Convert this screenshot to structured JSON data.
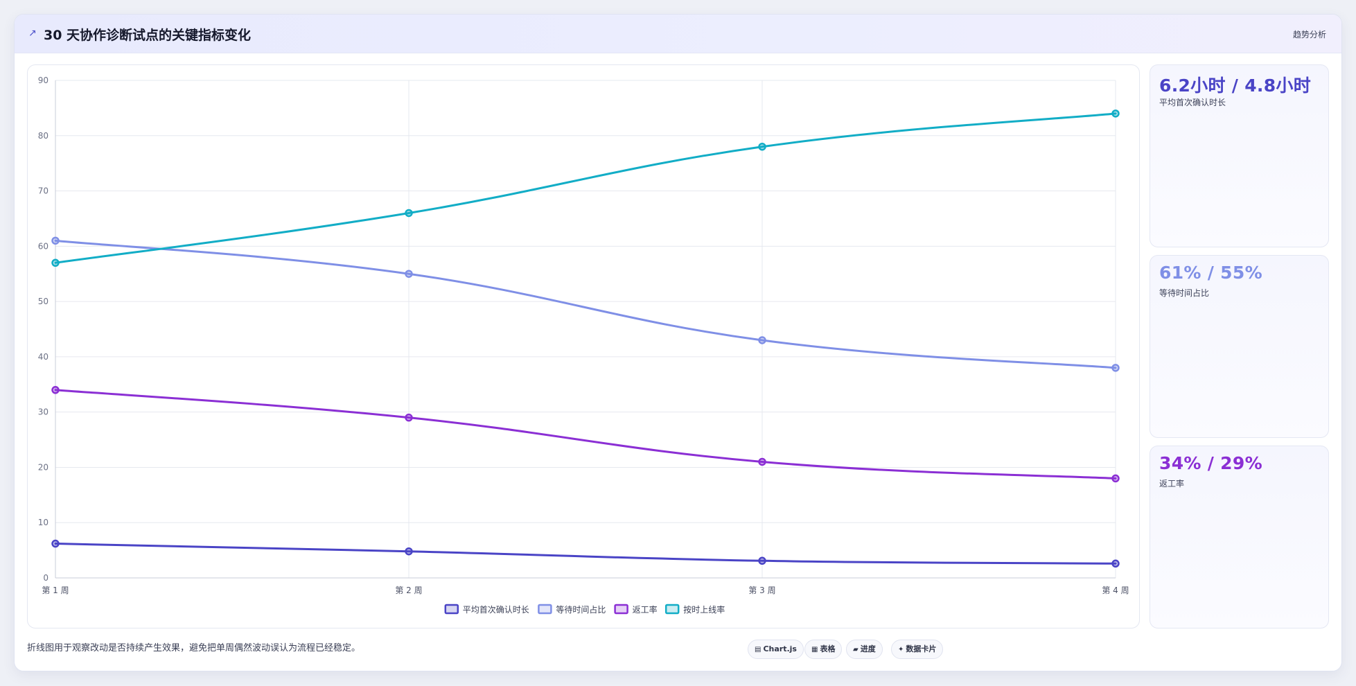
{
  "header": {
    "icon": "trend-icon",
    "icon_glyph": "↗",
    "title": "30 天协作诊断试点的关键指标变化",
    "tag": "趋势分析"
  },
  "chart_data": {
    "type": "line",
    "categories": [
      "第 1 周",
      "第 2 周",
      "第 3 周",
      "第 4 周"
    ],
    "ylim": [
      0,
      90
    ],
    "yticks": [
      0,
      10,
      20,
      30,
      40,
      50,
      60,
      70,
      80,
      90
    ],
    "grid": true,
    "legend_position": "bottom",
    "series": [
      {
        "name": "平均首次确认时长",
        "color": "#4a44c6",
        "values": [
          6.2,
          4.8,
          3.1,
          2.6
        ]
      },
      {
        "name": "等待时间占比",
        "color": "#7f8fe6",
        "values": [
          61,
          55,
          43,
          38
        ]
      },
      {
        "name": "返工率",
        "color": "#8b2fd4",
        "values": [
          34,
          29,
          21,
          18
        ]
      },
      {
        "name": "按时上线率",
        "color": "#12adc6",
        "values": [
          57,
          66,
          78,
          84
        ]
      }
    ]
  },
  "stats": [
    {
      "value": "6.2小时 / 4.8小时",
      "label": "平均首次确认时长",
      "color": "#4a44c6"
    },
    {
      "value": "61% / 55%",
      "label": "等待时间占比",
      "color": "#7f8fe6"
    },
    {
      "value": "34% / 29%",
      "label": "返工率",
      "color": "#8b2fd4"
    }
  ],
  "footer": {
    "note": "折线图用于观察改动是否持续产生效果，避免把单周偶然波动误认为流程已经稳定。",
    "pills": [
      {
        "icon": "chart-icon",
        "glyph": "▤",
        "label": "Chart.js"
      },
      {
        "icon": "table-icon",
        "glyph": "▦",
        "label": "表格"
      },
      {
        "icon": "progress-icon",
        "glyph": "▰",
        "label": "进度"
      },
      {
        "icon": "sparkle-icon",
        "glyph": "✦",
        "label": "数据卡片"
      }
    ]
  }
}
